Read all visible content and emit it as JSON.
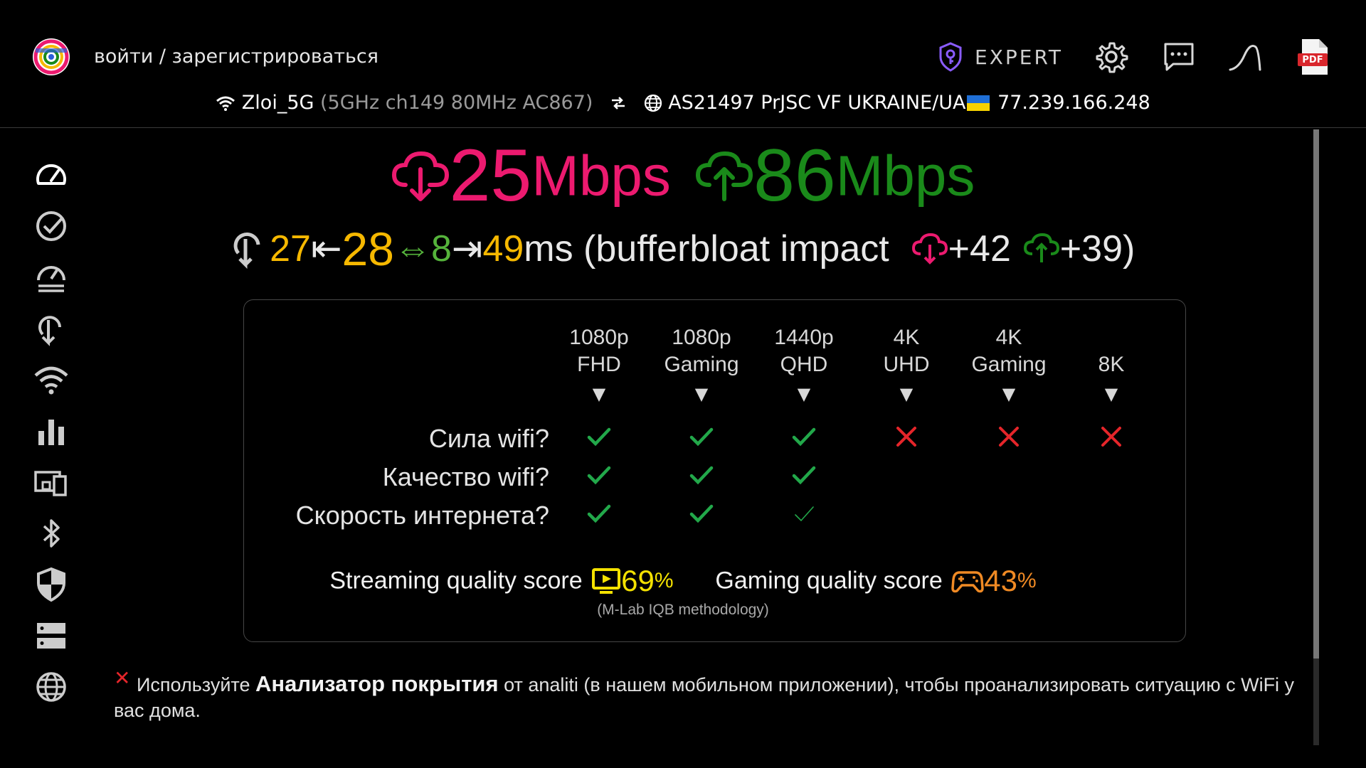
{
  "header": {
    "login_link": "войти / зарегистрироваться",
    "expert_label": "EXPERT",
    "icons": [
      "logo-icon",
      "key-icon",
      "gear-icon",
      "message-icon",
      "curve-icon",
      "pdf-icon"
    ],
    "pdf_label": "PDF"
  },
  "network": {
    "ssid": "Zloi_5G",
    "wifi_details": "(5GHz ch149 80MHz AC867)",
    "isp": "AS21497 PrJSC VF UKRAINE/UA",
    "ip": "77.239.166.248"
  },
  "speeds": {
    "download_value": "25",
    "download_unit": "Mbps",
    "upload_value": "86",
    "upload_unit": "Mbps"
  },
  "latency": {
    "min": "27",
    "arrow_left": "⇤",
    "median": "28",
    "jitter_arrow": "⇔",
    "jitter": "8",
    "arrow_right": "⇥",
    "max": "49",
    "suffix": "ms (bufferbloat impact",
    "down_impact": "+42",
    "up_impact": "+39",
    "close_paren": ")"
  },
  "quality_table": {
    "columns": [
      {
        "line1": "1080p",
        "line2": "FHD"
      },
      {
        "line1": "1080p",
        "line2": "Gaming"
      },
      {
        "line1": "1440p",
        "line2": "QHD"
      },
      {
        "line1": "4K",
        "line2": "UHD"
      },
      {
        "line1": "4K",
        "line2": "Gaming"
      },
      {
        "line1": "",
        "line2": "8K"
      }
    ],
    "arrow": "▼",
    "rows": [
      {
        "label": "Сила wifi?",
        "marks": [
          "check",
          "check",
          "check",
          "cross",
          "cross",
          "cross"
        ]
      },
      {
        "label": "Качество wifi?",
        "marks": [
          "check",
          "check",
          "check",
          "",
          "",
          ""
        ]
      },
      {
        "label": "Скорость интернета?",
        "marks": [
          "check",
          "check",
          "check-thin",
          "",
          "",
          ""
        ]
      }
    ]
  },
  "scores": {
    "streaming_label": "Streaming quality score",
    "streaming_value": "69",
    "gaming_label": "Gaming quality score",
    "gaming_value": "43",
    "percent": "%",
    "methodology": "(M-Lab IQB methodology)"
  },
  "note": {
    "prefix": "Используйте",
    "highlight": "Анализатор покрытия",
    "suffix": "от analiti (в нашем мобильном приложении), чтобы проанализировать ситуацию с WiFi у вас дома."
  },
  "sidebar": {
    "items": [
      "speedometer-icon",
      "check-circle-icon",
      "speedtest-history-icon",
      "latency-icon",
      "wifi-icon",
      "bar-chart-icon",
      "devices-icon",
      "bluetooth-icon",
      "shield-icon",
      "server-icon",
      "globe-icon"
    ]
  },
  "colors": {
    "download": "#ec1a6f",
    "upload": "#1a8a1a",
    "latency": "#f6b800",
    "jitter": "#55b33b",
    "check": "#22a84a",
    "cross": "#e5252a",
    "streaming_score": "#f4e100",
    "gaming_score": "#f08a24"
  }
}
